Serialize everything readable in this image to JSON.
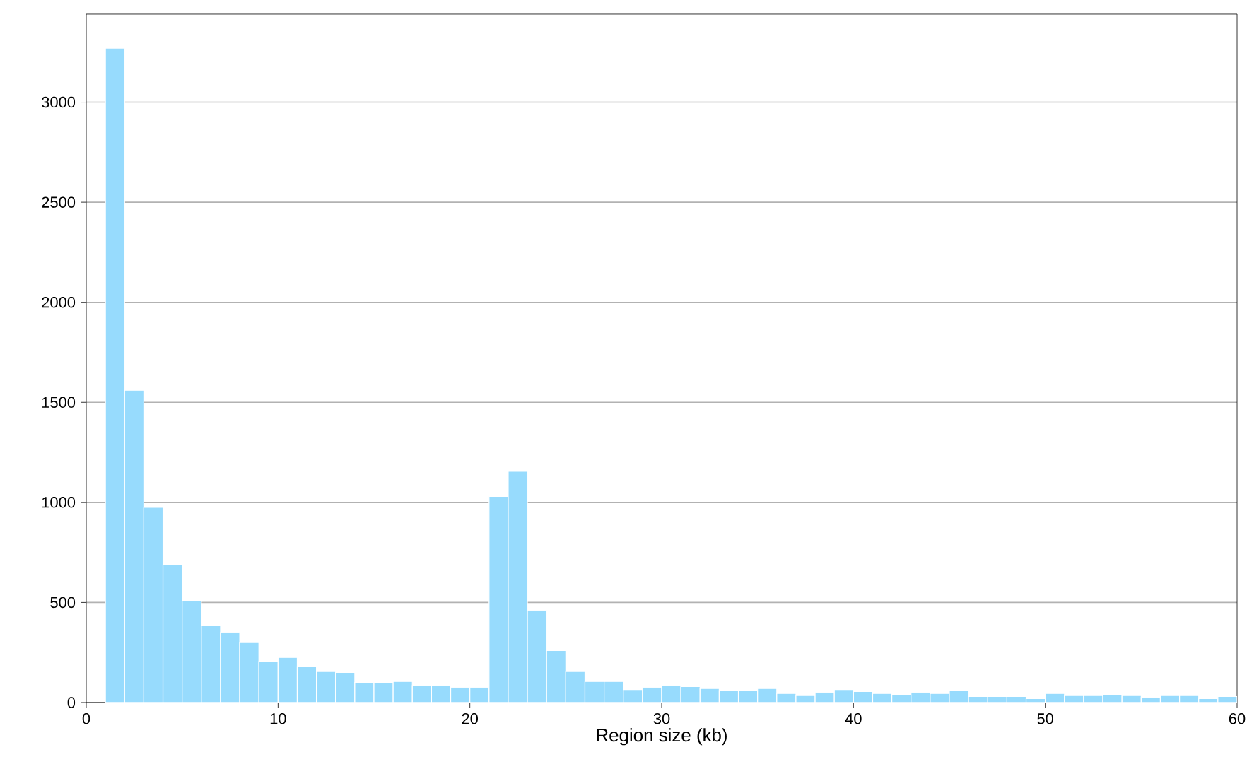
{
  "chart_data": {
    "type": "histogram",
    "xlabel": "Region size (kb)",
    "bins": [
      1,
      2,
      3,
      4,
      5,
      6,
      7,
      8,
      9,
      10,
      11,
      12,
      13,
      14,
      15,
      16,
      17,
      18,
      19,
      20,
      21,
      22,
      23,
      24,
      25,
      26,
      27,
      28,
      29,
      30,
      31,
      32,
      33,
      34,
      35,
      36,
      37,
      38,
      39,
      40,
      41,
      42,
      43,
      44,
      45,
      46,
      47,
      48,
      49,
      50,
      51,
      52,
      53,
      54,
      55,
      56,
      57,
      58,
      59,
      60
    ],
    "values": [
      3270,
      1560,
      975,
      690,
      510,
      385,
      350,
      300,
      205,
      225,
      180,
      155,
      150,
      100,
      100,
      105,
      85,
      85,
      75,
      75,
      1030,
      1155,
      460,
      260,
      155,
      105,
      105,
      65,
      75,
      85,
      80,
      70,
      60,
      60,
      70,
      45,
      35,
      50,
      65,
      55,
      45,
      40,
      50,
      45,
      60,
      30,
      30,
      30,
      20,
      45,
      35,
      35,
      40,
      35,
      25,
      35,
      35,
      20,
      30
    ],
    "color": "#97dbfd",
    "xlim": [
      0,
      60
    ],
    "xticks": [
      0,
      10,
      20,
      30,
      40,
      50,
      60
    ],
    "ylim": [
      0,
      3440
    ],
    "yticks": [
      0,
      500,
      1000,
      1500,
      2000,
      2500,
      3000
    ],
    "grid": "y"
  }
}
